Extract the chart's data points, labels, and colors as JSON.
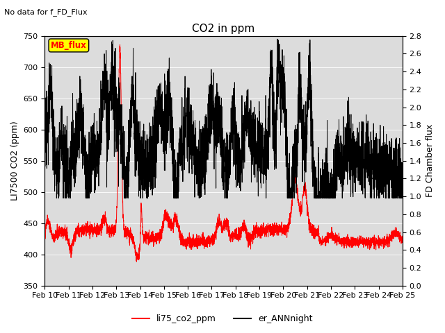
{
  "title": "CO2 in ppm",
  "top_note": "No data for f_FD_Flux",
  "ylabel_left": "LI7500 CO2 (ppm)",
  "ylabel_right": "FD Chamber flux",
  "ylim_left": [
    350,
    750
  ],
  "ylim_right": [
    0.0,
    2.8
  ],
  "yticks_left": [
    350,
    400,
    450,
    500,
    550,
    600,
    650,
    700,
    750
  ],
  "yticks_right": [
    0.0,
    0.2,
    0.4,
    0.6,
    0.8,
    1.0,
    1.2,
    1.4,
    1.6,
    1.8,
    2.0,
    2.2,
    2.4,
    2.6,
    2.8
  ],
  "xtick_labels": [
    "Feb 10",
    "Feb 11",
    "Feb 12",
    "Feb 13",
    "Feb 14",
    "Feb 15",
    "Feb 16",
    "Feb 17",
    "Feb 18",
    "Feb 19",
    "Feb 20",
    "Feb 21",
    "Feb 22",
    "Feb 23",
    "Feb 24",
    "Feb 25"
  ],
  "legend_labels": [
    "li75_co2_ppm",
    "er_ANNnight"
  ],
  "legend_colors": [
    "#ff0000",
    "#000000"
  ],
  "mb_flux_box_color": "#ffff00",
  "mb_flux_text_color": "#ff0000",
  "line1_color": "#ff0000",
  "line2_color": "#000000",
  "background_color": "#dcdcdc",
  "title_fontsize": 11,
  "label_fontsize": 9,
  "tick_fontsize": 8
}
